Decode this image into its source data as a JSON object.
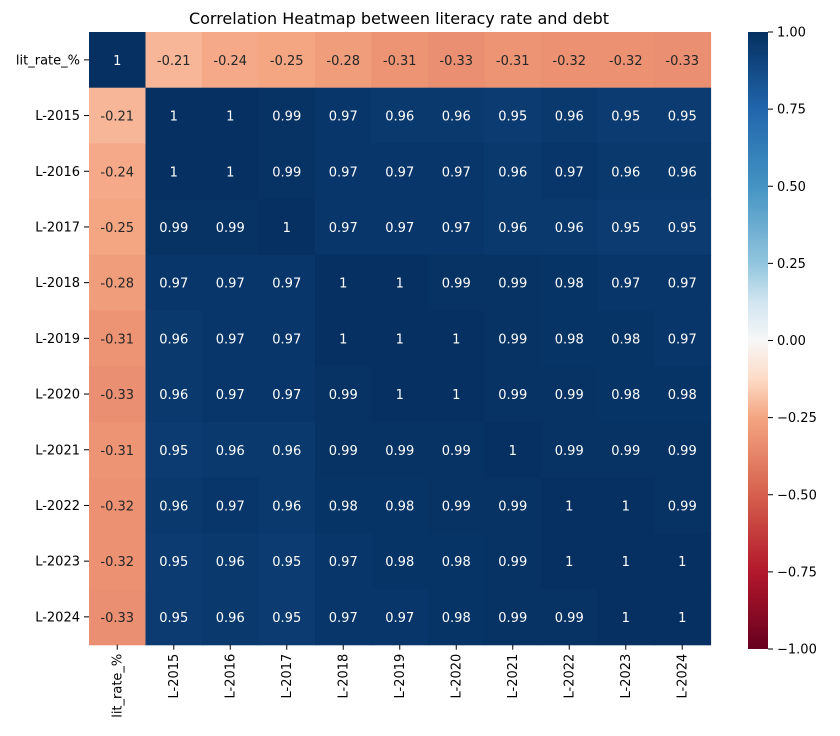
{
  "chart_data": {
    "type": "heatmap",
    "title": "Correlation Heatmap between literacy rate and debt",
    "xlabel": "",
    "ylabel": "",
    "row_labels": [
      "lit_rate_%",
      "L-2015",
      "L-2016",
      "L-2017",
      "L-2018",
      "L-2019",
      "L-2020",
      "L-2021",
      "L-2022",
      "L-2023",
      "L-2024"
    ],
    "col_labels": [
      "lit_rate_%",
      "L-2015",
      "L-2016",
      "L-2017",
      "L-2018",
      "L-2019",
      "L-2020",
      "L-2021",
      "L-2022",
      "L-2023",
      "L-2024"
    ],
    "values": [
      [
        1,
        -0.21,
        -0.24,
        -0.25,
        -0.28,
        -0.31,
        -0.33,
        -0.31,
        -0.32,
        -0.32,
        -0.33
      ],
      [
        -0.21,
        1,
        1,
        0.99,
        0.97,
        0.96,
        0.96,
        0.95,
        0.96,
        0.95,
        0.95
      ],
      [
        -0.24,
        1,
        1,
        0.99,
        0.97,
        0.97,
        0.97,
        0.96,
        0.97,
        0.96,
        0.96
      ],
      [
        -0.25,
        0.99,
        0.99,
        1,
        0.97,
        0.97,
        0.97,
        0.96,
        0.96,
        0.95,
        0.95
      ],
      [
        -0.28,
        0.97,
        0.97,
        0.97,
        1,
        1,
        0.99,
        0.99,
        0.98,
        0.97,
        0.97
      ],
      [
        -0.31,
        0.96,
        0.97,
        0.97,
        1,
        1,
        1,
        0.99,
        0.98,
        0.98,
        0.97
      ],
      [
        -0.33,
        0.96,
        0.97,
        0.97,
        0.99,
        1,
        1,
        0.99,
        0.99,
        0.98,
        0.98
      ],
      [
        -0.31,
        0.95,
        0.96,
        0.96,
        0.99,
        0.99,
        0.99,
        1,
        0.99,
        0.99,
        0.99
      ],
      [
        -0.32,
        0.96,
        0.97,
        0.96,
        0.98,
        0.98,
        0.99,
        0.99,
        1,
        1,
        0.99
      ],
      [
        -0.32,
        0.95,
        0.96,
        0.95,
        0.97,
        0.98,
        0.98,
        0.99,
        1,
        1,
        1
      ],
      [
        -0.33,
        0.95,
        0.96,
        0.95,
        0.97,
        0.97,
        0.98,
        0.99,
        0.99,
        1,
        1
      ]
    ],
    "colormap": "RdBu",
    "vmin": -1,
    "vmax": 1,
    "colorbar_ticks": [
      1,
      0.75,
      0.5,
      0.25,
      0,
      -0.25,
      -0.5,
      -0.75,
      -1
    ],
    "colorbar_tick_labels": [
      "1.00",
      "0.75",
      "0.50",
      "0.25",
      "0.00",
      "−0.25",
      "−0.50",
      "−0.75",
      "−1.00"
    ],
    "colors": {
      "low": "#67001f",
      "mid": "#f7f7f7",
      "high": "#053061"
    }
  }
}
